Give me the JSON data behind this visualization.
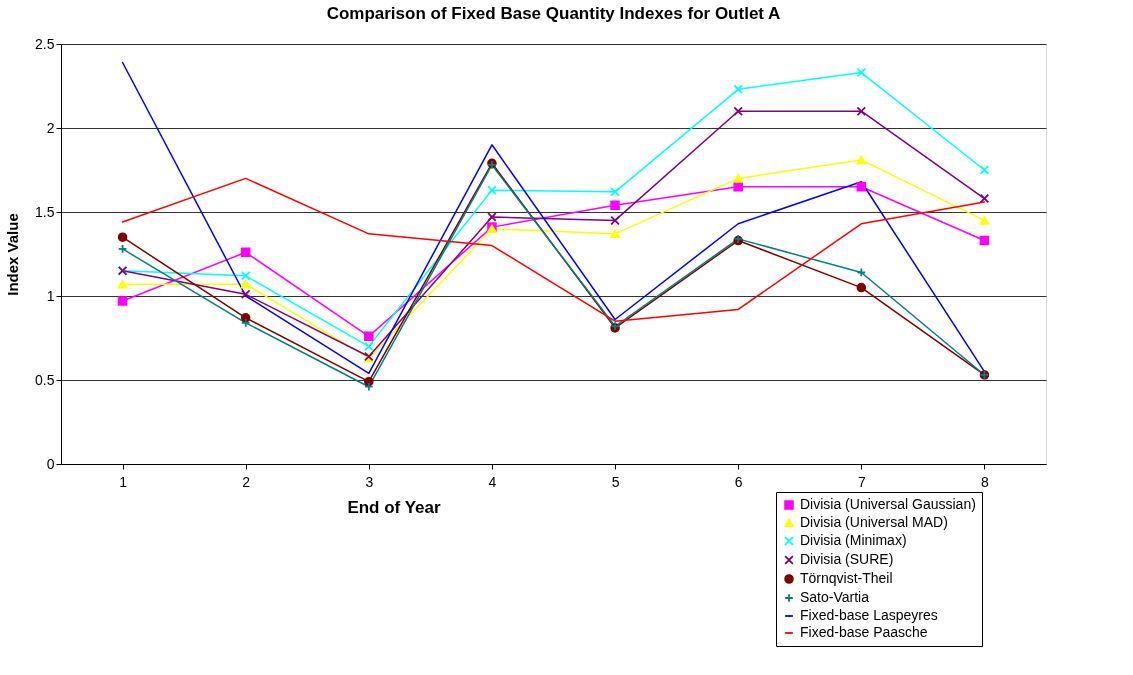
{
  "chart_data": {
    "type": "line",
    "title": "Comparison of Fixed Base Quantity Indexes for Outlet A",
    "xlabel": "End of Year",
    "ylabel": "Index Value",
    "categories": [
      "1",
      "2",
      "3",
      "4",
      "5",
      "6",
      "7",
      "8"
    ],
    "ylim": [
      0,
      2.5
    ],
    "yticks": [
      0,
      0.5,
      1,
      1.5,
      2,
      2.5
    ],
    "grid": "y",
    "legend": "bottom right",
    "series": [
      {
        "name": "Divisia (Universal Gaussian)",
        "color": "#ff00ff",
        "marker": "square",
        "values": [
          0.97,
          1.26,
          0.76,
          1.41,
          1.54,
          1.65,
          1.65,
          1.33
        ]
      },
      {
        "name": "Divisia (Universal MAD)",
        "color": "#ffff00",
        "marker": "triangle",
        "values": [
          1.07,
          1.07,
          0.63,
          1.4,
          1.37,
          1.7,
          1.81,
          1.45
        ]
      },
      {
        "name": "Divisia (Minimax)",
        "color": "#00ffff",
        "marker": "cross",
        "values": [
          1.15,
          1.12,
          0.7,
          1.63,
          1.62,
          2.23,
          2.33,
          1.75
        ]
      },
      {
        "name": "Divisia (SURE)",
        "color": "#800080",
        "marker": "cross",
        "values": [
          1.15,
          1.01,
          0.64,
          1.47,
          1.45,
          2.1,
          2.1,
          1.58
        ]
      },
      {
        "name": "Törnqvist-Theil",
        "color": "#800000",
        "marker": "circle",
        "values": [
          1.35,
          0.87,
          0.49,
          1.79,
          0.81,
          1.33,
          1.05,
          0.53
        ]
      },
      {
        "name": "Sato-Vartia",
        "color": "#008080",
        "marker": "plus",
        "values": [
          1.28,
          0.84,
          0.46,
          1.78,
          0.82,
          1.34,
          1.14,
          0.53
        ]
      },
      {
        "name": "Fixed-base Laspeyres",
        "color": "#0000ff",
        "marker": "none",
        "values": [
          2.39,
          1.0,
          0.54,
          1.9,
          0.86,
          1.43,
          1.68,
          0.55
        ]
      },
      {
        "name": "Fixed-base Paasche",
        "color": "#ff0000",
        "marker": "none",
        "values": [
          1.44,
          1.7,
          1.37,
          1.3,
          0.85,
          0.92,
          1.43,
          1.56
        ]
      }
    ]
  }
}
